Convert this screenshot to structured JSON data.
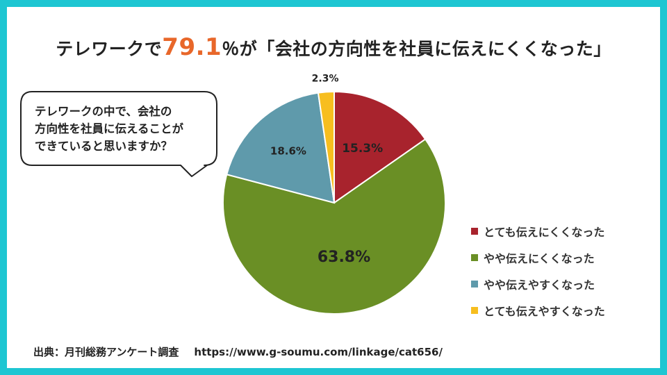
{
  "title": {
    "prefix": "テレワークで",
    "highlight": "79.1",
    "suffix": "％が「会社の方向性を社員に伝えにくくなった」"
  },
  "question_bubble": {
    "lines": [
      "テレワークの中で、会社の",
      "方向性を社員に伝えることが",
      "できていると思いますか？"
    ]
  },
  "chart_data": {
    "type": "pie",
    "title": "",
    "start_angle_deg": 0,
    "direction": "clockwise",
    "slices": [
      {
        "name": "とても伝えにくくなった",
        "value": 15.3,
        "label": "15.3%",
        "color": "#a8232d"
      },
      {
        "name": "やや伝えにくくなった",
        "value": 63.8,
        "label": "63.8%",
        "color": "#6a8f25"
      },
      {
        "name": "やや伝えやすくなった",
        "value": 18.6,
        "label": "18.6%",
        "color": "#5f9aab"
      },
      {
        "name": "とても伝えやすくなった",
        "value": 2.3,
        "label": "2.3%",
        "color": "#f7be1f"
      }
    ],
    "legend_position": "right"
  },
  "source": {
    "label": "出典：月刊総務アンケート調査",
    "url": "https://www.g-soumu.com/linkage/cat656/"
  }
}
